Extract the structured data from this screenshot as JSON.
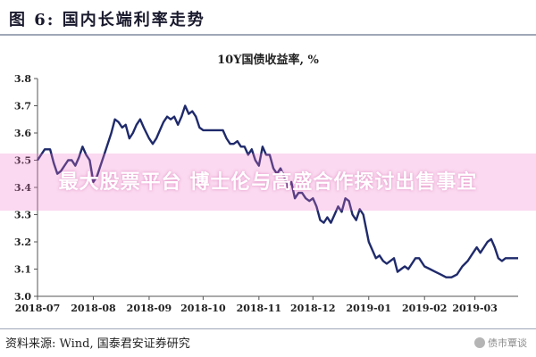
{
  "header": {
    "title": "图 6: 国内长端利率走势"
  },
  "banner": {
    "text": "最大股票平台 博士伦与高盛合作探讨出售事宜"
  },
  "footer": {
    "source": "资料来源: Wind, 国泰君安证券研究"
  },
  "watermark": {
    "text": "债市覃谈"
  },
  "colors": {
    "line": "#1f2a6b",
    "axis": "#555555",
    "banner": "#f07cc8"
  },
  "chart_data": {
    "type": "line",
    "title": "10Y国债收益率, %",
    "xlabel": "",
    "ylabel": "",
    "ylim": [
      3.0,
      3.8
    ],
    "yticks": [
      "3.0",
      "3.1",
      "3.2",
      "3.3",
      "3.4",
      "3.5",
      "3.6",
      "3.7",
      "3.8"
    ],
    "xlim": [
      "2018-07-01",
      "2019-03-25"
    ],
    "xticks": [
      "2018-07",
      "2018-08",
      "2018-09",
      "2018-10",
      "2018-11",
      "2018-12",
      "2019-01",
      "2019-02",
      "2019-03"
    ],
    "grid": false,
    "series": [
      {
        "name": "",
        "x": [
          "2018-07-01",
          "2018-07-03",
          "2018-07-05",
          "2018-07-08",
          "2018-07-10",
          "2018-07-12",
          "2018-07-14",
          "2018-07-16",
          "2018-07-18",
          "2018-07-20",
          "2018-07-22",
          "2018-07-24",
          "2018-07-26",
          "2018-07-28",
          "2018-07-30",
          "2018-08-01",
          "2018-08-03",
          "2018-08-05",
          "2018-08-07",
          "2018-08-09",
          "2018-08-11",
          "2018-08-13",
          "2018-08-15",
          "2018-08-17",
          "2018-08-19",
          "2018-08-21",
          "2018-08-23",
          "2018-08-25",
          "2018-08-27",
          "2018-08-29",
          "2018-09-01",
          "2018-09-03",
          "2018-09-05",
          "2018-09-07",
          "2018-09-09",
          "2018-09-11",
          "2018-09-13",
          "2018-09-15",
          "2018-09-17",
          "2018-09-19",
          "2018-09-21",
          "2018-09-23",
          "2018-09-25",
          "2018-09-27",
          "2018-09-29",
          "2018-10-01",
          "2018-10-05",
          "2018-10-08",
          "2018-10-10",
          "2018-10-12",
          "2018-10-14",
          "2018-10-16",
          "2018-10-18",
          "2018-10-20",
          "2018-10-22",
          "2018-10-24",
          "2018-10-26",
          "2018-10-28",
          "2018-10-30",
          "2018-11-01",
          "2018-11-03",
          "2018-11-05",
          "2018-11-07",
          "2018-11-09",
          "2018-11-11",
          "2018-11-13",
          "2018-11-15",
          "2018-11-17",
          "2018-11-19",
          "2018-11-21",
          "2018-11-23",
          "2018-11-25",
          "2018-11-27",
          "2018-11-29",
          "2018-12-01",
          "2018-12-03",
          "2018-12-05",
          "2018-12-07",
          "2018-12-09",
          "2018-12-11",
          "2018-12-13",
          "2018-12-15",
          "2018-12-17",
          "2018-12-19",
          "2018-12-21",
          "2018-12-23",
          "2018-12-25",
          "2018-12-27",
          "2018-12-29",
          "2019-01-01",
          "2019-01-03",
          "2019-01-05",
          "2019-01-07",
          "2019-01-09",
          "2019-01-11",
          "2019-01-13",
          "2019-01-15",
          "2019-01-17",
          "2019-01-19",
          "2019-01-21",
          "2019-01-23",
          "2019-01-25",
          "2019-01-27",
          "2019-01-29",
          "2019-02-01",
          "2019-02-04",
          "2019-02-07",
          "2019-02-10",
          "2019-02-13",
          "2019-02-16",
          "2019-02-19",
          "2019-02-22",
          "2019-02-25",
          "2019-02-28",
          "2019-03-02",
          "2019-03-04",
          "2019-03-06",
          "2019-03-08",
          "2019-03-10",
          "2019-03-12",
          "2019-03-14",
          "2019-03-16",
          "2019-03-18",
          "2019-03-20",
          "2019-03-22",
          "2019-03-25"
        ],
        "values": [
          3.5,
          3.52,
          3.54,
          3.54,
          3.49,
          3.45,
          3.46,
          3.48,
          3.5,
          3.5,
          3.48,
          3.51,
          3.55,
          3.52,
          3.5,
          3.42,
          3.44,
          3.48,
          3.52,
          3.56,
          3.6,
          3.65,
          3.64,
          3.62,
          3.63,
          3.58,
          3.6,
          3.63,
          3.65,
          3.62,
          3.58,
          3.56,
          3.58,
          3.61,
          3.64,
          3.66,
          3.65,
          3.66,
          3.63,
          3.66,
          3.7,
          3.67,
          3.68,
          3.66,
          3.62,
          3.61,
          3.61,
          3.61,
          3.61,
          3.61,
          3.58,
          3.56,
          3.56,
          3.57,
          3.55,
          3.55,
          3.52,
          3.54,
          3.5,
          3.48,
          3.55,
          3.52,
          3.52,
          3.47,
          3.45,
          3.47,
          3.44,
          3.4,
          3.42,
          3.36,
          3.38,
          3.38,
          3.36,
          3.35,
          3.36,
          3.33,
          3.28,
          3.27,
          3.29,
          3.27,
          3.3,
          3.33,
          3.31,
          3.36,
          3.35,
          3.3,
          3.28,
          3.32,
          3.3,
          3.2,
          3.17,
          3.14,
          3.15,
          3.13,
          3.12,
          3.13,
          3.14,
          3.09,
          3.1,
          3.11,
          3.1,
          3.12,
          3.14,
          3.14,
          3.11,
          3.1,
          3.09,
          3.08,
          3.07,
          3.07,
          3.08,
          3.11,
          3.13,
          3.16,
          3.18,
          3.16,
          3.18,
          3.2,
          3.21,
          3.18,
          3.14,
          3.13,
          3.14,
          3.14,
          3.14,
          3.14
        ]
      }
    ]
  }
}
